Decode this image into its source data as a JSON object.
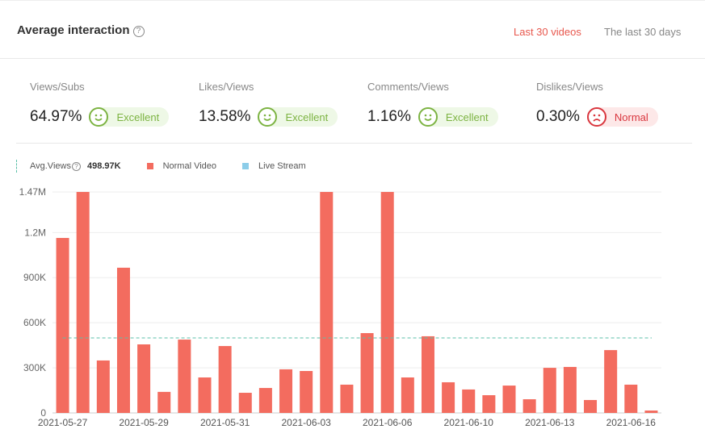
{
  "header": {
    "title": "Average interaction",
    "help_icon": "?",
    "tabs": [
      {
        "label": "Last 30 videos",
        "active": true
      },
      {
        "label": "The last 30 days",
        "active": false
      }
    ]
  },
  "metrics": [
    {
      "label": "Views/Subs",
      "value": "64.97%",
      "rating": "Excellent",
      "mood": "good"
    },
    {
      "label": "Likes/Views",
      "value": "13.58%",
      "rating": "Excellent",
      "mood": "good"
    },
    {
      "label": "Comments/Views",
      "value": "1.16%",
      "rating": "Excellent",
      "mood": "good"
    },
    {
      "label": "Dislikes/Views",
      "value": "0.30%",
      "rating": "Normal",
      "mood": "bad"
    }
  ],
  "legend": {
    "avg_label": "Avg.Views",
    "avg_value": "498.97K",
    "normal": "Normal Video",
    "live": "Live Stream"
  },
  "colors": {
    "normal": "#f36c5f",
    "live": "#8ccde9",
    "avg": "#5bbfa8",
    "accent": "#e8584e"
  },
  "chart_data": {
    "type": "bar",
    "ylim": [
      0,
      1470000
    ],
    "yticks": [
      0,
      300000,
      600000,
      900000,
      1200000,
      1470000
    ],
    "ytick_labels": [
      "0",
      "300K",
      "600K",
      "900K",
      "1.2M",
      "1.47M"
    ],
    "average": 498970,
    "xtick_labels": [
      {
        "index": 0,
        "label": "2021-05-27"
      },
      {
        "index": 4,
        "label": "2021-05-29"
      },
      {
        "index": 8,
        "label": "2021-05-31"
      },
      {
        "index": 12,
        "label": "2021-06-03"
      },
      {
        "index": 16,
        "label": "2021-06-06"
      },
      {
        "index": 20,
        "label": "2021-06-10"
      },
      {
        "index": 24,
        "label": "2021-06-13"
      },
      {
        "index": 28,
        "label": "2021-06-16"
      }
    ],
    "series": [
      {
        "name": "Normal Video",
        "values": [
          1164000,
          1470000,
          349000,
          966000,
          456000,
          140000,
          488000,
          236000,
          445000,
          134000,
          166000,
          290000,
          279000,
          1470000,
          188000,
          531000,
          1470000,
          236000,
          510000,
          204000,
          156000,
          118000,
          182000,
          91000,
          300000,
          306000,
          86000,
          418000,
          188000,
          16000
        ]
      }
    ]
  }
}
